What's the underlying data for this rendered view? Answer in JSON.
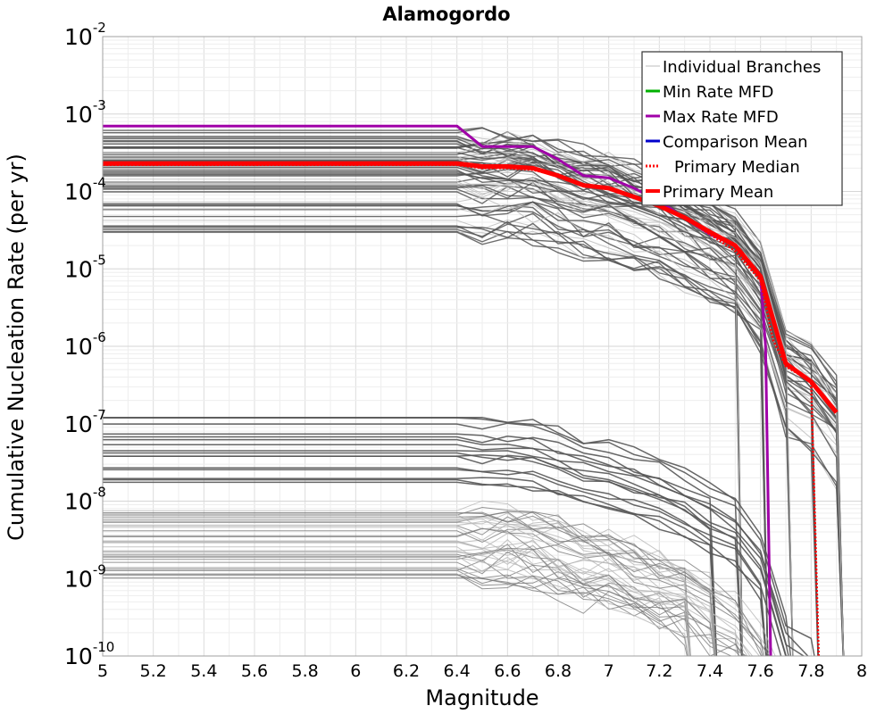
{
  "chart_data": {
    "type": "line",
    "title": "Alamogordo",
    "xlabel": "Magnitude",
    "ylabel": "Cumulative Nucleation Rate (per yr)",
    "xlim": [
      5,
      8
    ],
    "ylim": [
      1e-10,
      0.01
    ],
    "yscale": "log",
    "grid": true,
    "legend_position": "top-right",
    "x_ticks": [
      "5",
      "5.2",
      "5.4",
      "5.6",
      "5.8",
      "6",
      "6.2",
      "6.4",
      "6.6",
      "6.8",
      "7",
      "7.2",
      "7.4",
      "7.6",
      "7.8",
      "8"
    ],
    "y_ticks": [
      {
        "base": "10",
        "exp": "-10",
        "value": 1e-10
      },
      {
        "base": "10",
        "exp": "-9",
        "value": 1e-09
      },
      {
        "base": "10",
        "exp": "-8",
        "value": 1e-08
      },
      {
        "base": "10",
        "exp": "-7",
        "value": 1e-07
      },
      {
        "base": "10",
        "exp": "-6",
        "value": 1e-06
      },
      {
        "base": "10",
        "exp": "-5",
        "value": 1e-05
      },
      {
        "base": "10",
        "exp": "-4",
        "value": 0.0001
      },
      {
        "base": "10",
        "exp": "-3",
        "value": 0.001
      },
      {
        "base": "10",
        "exp": "-2",
        "value": 0.01
      }
    ],
    "legend": [
      {
        "label": "Individual Branches",
        "color": "#bdbdbd",
        "style": "solid-thin"
      },
      {
        "label": "Min Rate MFD",
        "color": "#00b000",
        "style": "solid"
      },
      {
        "label": "Max Rate MFD",
        "color": "#a000a8",
        "style": "solid"
      },
      {
        "label": "Comparison Mean",
        "color": "#0000cc",
        "style": "solid"
      },
      {
        "label": "Primary Median",
        "color": "#ff0000",
        "style": "dotted"
      },
      {
        "label": "Primary Mean",
        "color": "#ff0000",
        "style": "solid-thick"
      }
    ],
    "series": [
      {
        "name": "Max Rate MFD",
        "color": "#a000a8",
        "x": [
          5.0,
          6.4,
          6.5,
          6.6,
          6.7,
          6.8,
          6.9,
          7.0,
          7.1,
          7.2,
          7.3,
          7.4,
          7.5,
          7.6,
          7.62,
          7.64
        ],
        "y": [
          0.0007,
          0.0007,
          0.00038,
          0.00038,
          0.00038,
          0.00026,
          0.00016,
          0.00015,
          0.00011,
          7.5e-05,
          4.5e-05,
          2.8e-05,
          2e-05,
          8e-06,
          1e-06,
          1e-10
        ]
      },
      {
        "name": "Primary Median",
        "color": "#ff0000",
        "x": [
          5.0,
          6.4,
          6.5,
          6.6,
          6.7,
          6.8,
          6.9,
          7.0,
          7.1,
          7.2,
          7.3,
          7.4,
          7.5,
          7.6,
          7.65,
          7.7,
          7.8,
          7.83
        ],
        "y": [
          0.00022,
          0.00022,
          0.0002,
          0.0002,
          0.00019,
          0.00016,
          0.00012,
          0.00011,
          8.5e-05,
          6.5e-05,
          4.5e-05,
          2.8e-05,
          1.7e-05,
          7e-06,
          1.2e-06,
          5.5e-07,
          3.5e-07,
          1e-10
        ]
      },
      {
        "name": "Primary Mean",
        "color": "#ff0000",
        "x": [
          5.0,
          6.4,
          6.5,
          6.6,
          6.7,
          6.8,
          6.9,
          7.0,
          7.1,
          7.2,
          7.3,
          7.4,
          7.5,
          7.6,
          7.7,
          7.8,
          7.9
        ],
        "y": [
          0.00023,
          0.00023,
          0.00021,
          0.00021,
          0.0002,
          0.00016,
          0.00012,
          0.00011,
          8.5e-05,
          6.5e-05,
          4.6e-05,
          3e-05,
          2e-05,
          8e-06,
          6e-07,
          3.5e-07,
          1.4e-07
        ]
      }
    ]
  }
}
